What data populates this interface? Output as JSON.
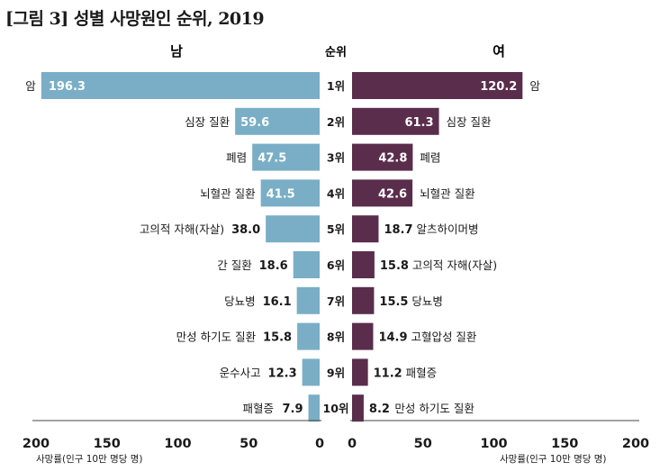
{
  "title": "[그림 3] 성별 사망원인 순위, 2019",
  "chart_data": {
    "type": "bar",
    "orientation": "horizontal-butterfly",
    "rank_header": "순위",
    "ranks": [
      "1위",
      "2위",
      "3위",
      "4위",
      "5위",
      "6위",
      "7위",
      "8위",
      "9위",
      "10위"
    ],
    "xlim": [
      0,
      200
    ],
    "ticks": [
      200,
      150,
      100,
      50,
      0
    ],
    "ticks_right": [
      0,
      50,
      100,
      150,
      200
    ],
    "xlabel": "사망률(인구 10만 명당 명)",
    "series": [
      {
        "name": "남",
        "side": "left",
        "color": "#7aaec6",
        "categories": [
          "암",
          "심장 질환",
          "폐렴",
          "뇌혈관 질환",
          "고의적 자해(자살)",
          "간 질환",
          "당뇨병",
          "만성 하기도 질환",
          "운수사고",
          "패혈증"
        ],
        "values": [
          196.3,
          59.6,
          47.5,
          41.5,
          38.0,
          18.6,
          16.1,
          15.8,
          12.3,
          7.9
        ],
        "labels": [
          "196.3",
          "59.6",
          "47.5",
          "41.5",
          "38.0",
          "18.6",
          "16.1",
          "15.8",
          "12.3",
          "7.9"
        ]
      },
      {
        "name": "여",
        "side": "right",
        "color": "#5b2d4c",
        "categories": [
          "암",
          "심장 질환",
          "폐렴",
          "뇌혈관 질환",
          "알츠하이머병",
          "고의적 자해(자살)",
          "당뇨병",
          "고혈압성 질환",
          "패혈증",
          "만성 하기도 질환"
        ],
        "values": [
          120.2,
          61.3,
          42.8,
          42.6,
          18.7,
          15.8,
          15.5,
          14.9,
          11.2,
          8.2
        ],
        "labels": [
          "120.2",
          "61.3",
          "42.8",
          "42.6",
          "18.7",
          "15.8",
          "15.5",
          "14.9",
          "11.2",
          "8.2"
        ]
      }
    ]
  }
}
